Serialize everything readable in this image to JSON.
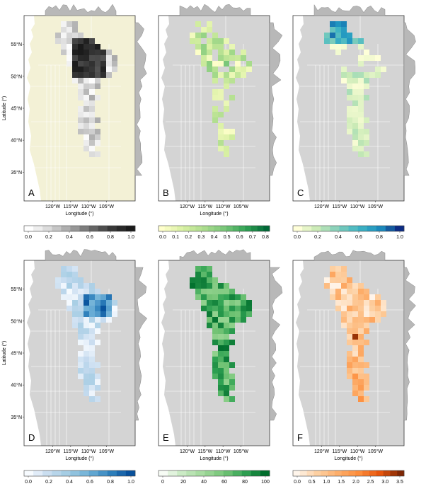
{
  "axes": {
    "ylabel": "Latitude (°)",
    "xlabel": "Longitude (°)",
    "lat_ticks": [
      "55°N",
      "50°N",
      "45°N",
      "40°N",
      "35°N"
    ],
    "lat_values": [
      55,
      50,
      45,
      40,
      35
    ],
    "lon_ticks": [
      "120°W",
      "115°W",
      "110°W",
      "105°W"
    ],
    "lon_values": [
      -120,
      -115,
      -110,
      -105
    ]
  },
  "panels": [
    {
      "letter": "A",
      "ramp": "grey",
      "colorbar_ticks": [
        "0.0",
        "0.2",
        "0.4",
        "0.6",
        "0.8",
        "1.0"
      ],
      "colorbar_max": 1.0,
      "show_lon_ticks": true,
      "show_xlabel": true
    },
    {
      "letter": "B",
      "ramp": "yellow-green",
      "colorbar_ticks": [
        "0.0",
        "0.1",
        "0.2",
        "0.3",
        "0.4",
        "0.5",
        "0.6",
        "0.7",
        "0.8"
      ],
      "colorbar_max": 0.8,
      "show_lon_ticks": true,
      "show_xlabel": true
    },
    {
      "letter": "C",
      "ramp": "yellow-green-blue",
      "colorbar_ticks": [
        "0.0",
        "0.2",
        "0.4",
        "0.6",
        "0.8",
        "1.0"
      ],
      "colorbar_max": 1.0,
      "show_lon_ticks": true,
      "show_xlabel": false
    },
    {
      "letter": "D",
      "ramp": "blues",
      "colorbar_ticks": [
        "0.0",
        "0.2",
        "0.4",
        "0.6",
        "0.8",
        "1.0"
      ],
      "colorbar_max": 1.0,
      "show_lon_ticks": true,
      "show_xlabel": true
    },
    {
      "letter": "E",
      "ramp": "greens",
      "colorbar_ticks": [
        "0",
        "20",
        "40",
        "60",
        "80",
        "100"
      ],
      "colorbar_max": 100,
      "show_lon_ticks": true,
      "show_xlabel": true
    },
    {
      "letter": "F",
      "ramp": "oranges",
      "colorbar_ticks": [
        "0.0",
        "0.5",
        "1.0",
        "1.5",
        "2.0",
        "2.5",
        "3.0",
        "3.5"
      ],
      "colorbar_max": 3.5,
      "show_lon_ticks": true,
      "show_xlabel": true
    }
  ],
  "colors": {
    "land": "#d4d4d4",
    "panel_a_background": "#f3f1d6",
    "border": "#ffffff",
    "profile": "#b8b8b8"
  }
}
